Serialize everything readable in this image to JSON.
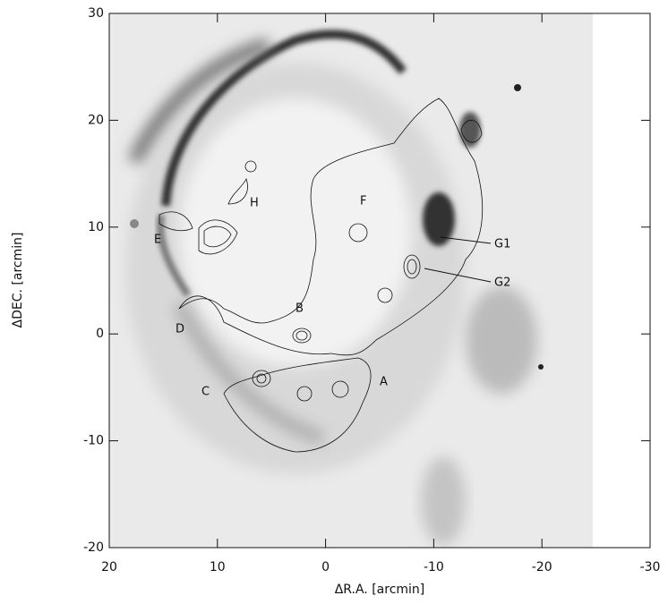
{
  "chart_data": {
    "type": "image",
    "xlabel": "ΔR.A.  [arcmin]",
    "ylabel": "ΔDEC.  [arcmin]",
    "xlim": [
      20,
      -30
    ],
    "xticks": [
      20,
      10,
      0,
      -10,
      -20,
      -30
    ],
    "ylim": [
      -20,
      30
    ],
    "yticks": [
      -20,
      -10,
      0,
      10,
      20,
      30
    ],
    "annotations": [
      "A",
      "B",
      "C",
      "D",
      "E",
      "F",
      "G1",
      "G2",
      "H"
    ]
  }
}
